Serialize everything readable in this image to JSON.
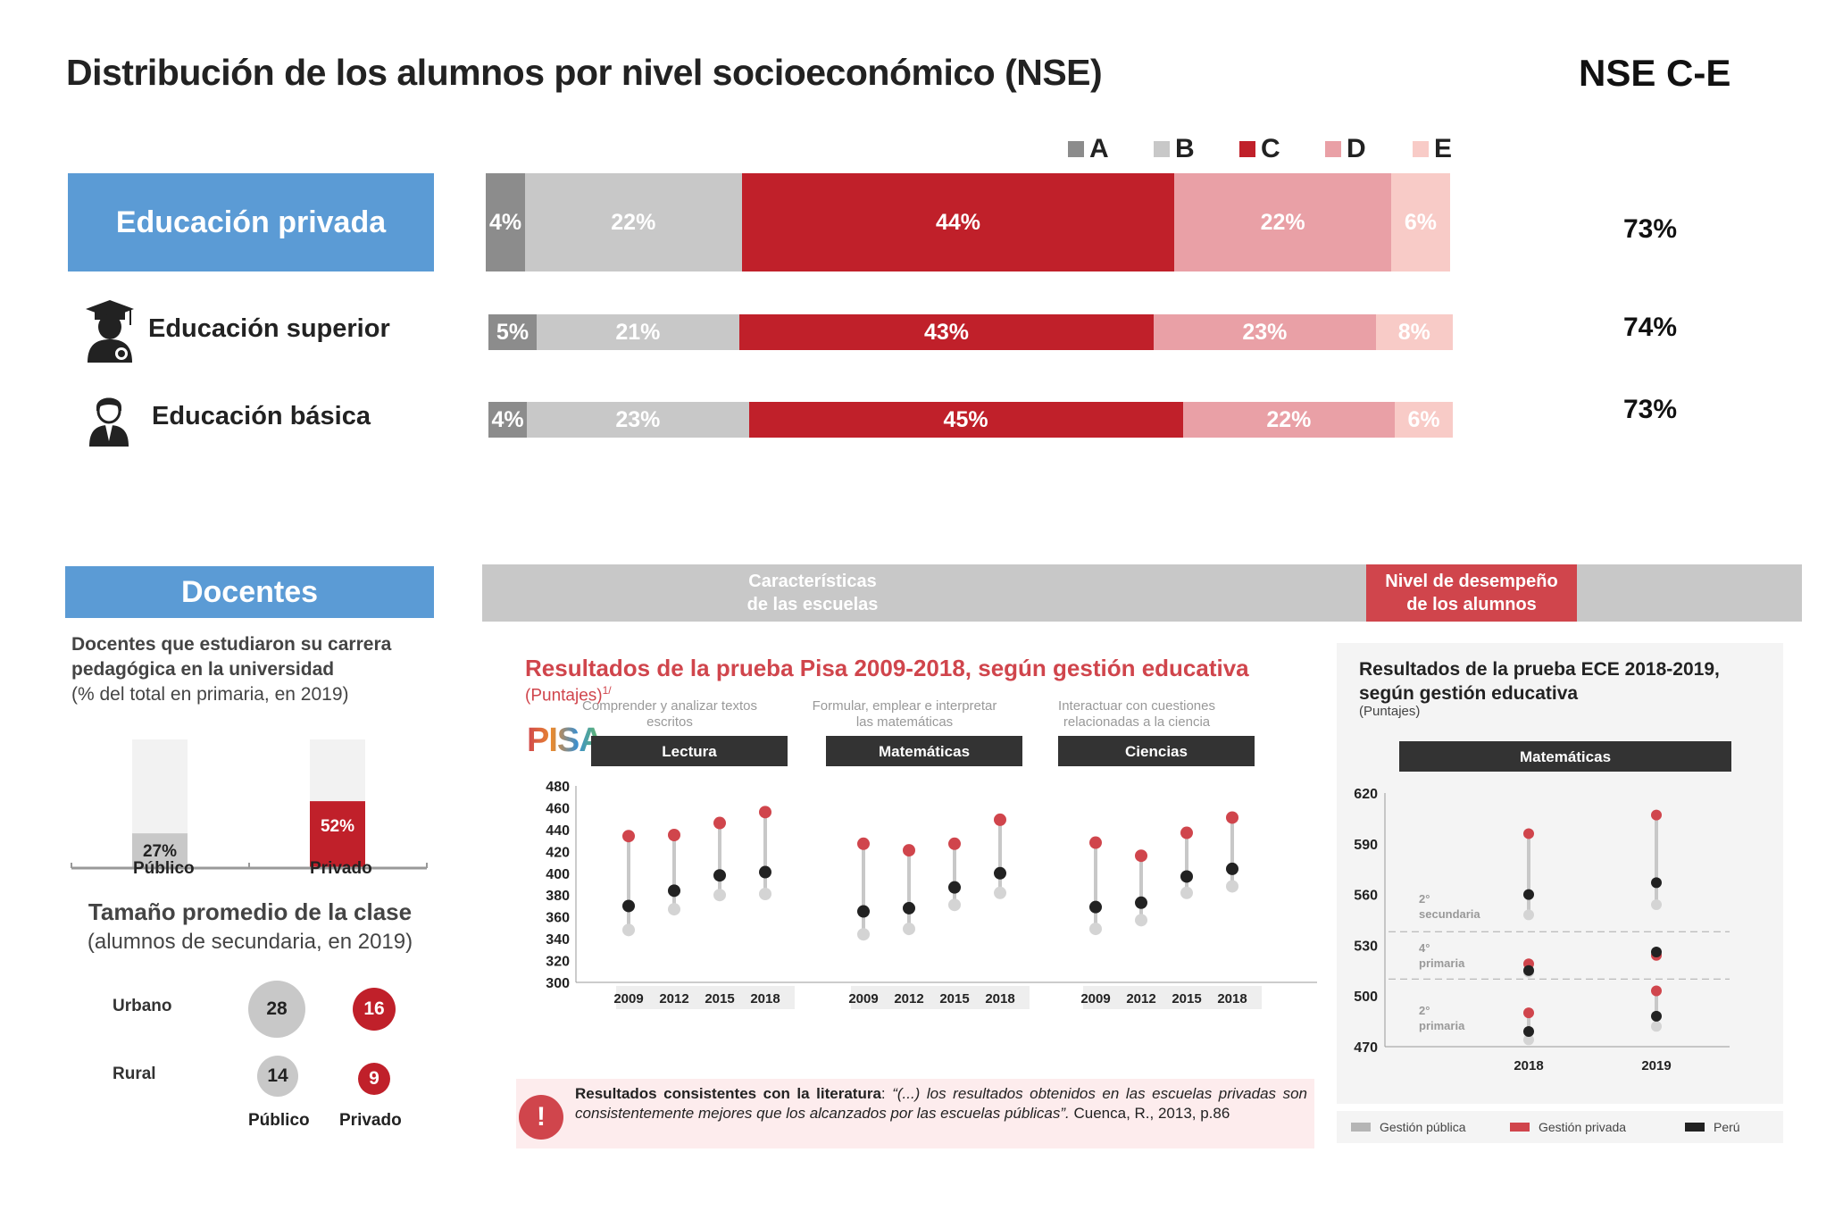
{
  "header": {
    "title": "Distribución de los alumnos por nivel socioeconómico (NSE)",
    "nse_title": "NSE C-E"
  },
  "colors": {
    "A": "#8c8c8c",
    "B": "#c8c8c8",
    "C": "#c0202a",
    "D": "#e9a0a6",
    "E": "#f8cbc7",
    "blue": "#5b9bd5",
    "red": "#d0454c",
    "gray_dot": "#cfcfcf",
    "dark_dot": "#222222"
  },
  "legend": [
    "A",
    "B",
    "C",
    "D",
    "E"
  ],
  "nse_rows": [
    {
      "label": "Educación privada",
      "values": [
        4,
        22,
        44,
        22,
        6
      ],
      "labels": [
        "4%",
        "22%",
        "44%",
        "22%",
        "6%"
      ],
      "nse_ce": "73%"
    },
    {
      "label": "Educación superior",
      "icon": "graduate-icon",
      "values": [
        5,
        21,
        43,
        23,
        8
      ],
      "labels": [
        "5%",
        "21%",
        "43%",
        "23%",
        "8%"
      ],
      "nse_ce": "74%"
    },
    {
      "label": "Educación básica",
      "icon": "student-icon",
      "values": [
        4,
        23,
        45,
        22,
        6
      ],
      "labels": [
        "4%",
        "23%",
        "45%",
        "22%",
        "6%"
      ],
      "nse_ce": "73%"
    }
  ],
  "docentes": {
    "title": "Docentes",
    "subtitle_bold": "Docentes que estudiaron su carrera pedagógica en la universidad",
    "subtitle_normal": "(% del total en primaria, en 2019)",
    "bars": [
      {
        "label": "Público",
        "value": 27,
        "value_label": "27%"
      },
      {
        "label": "Privado",
        "value": 52,
        "value_label": "52%"
      }
    ],
    "class_title": "Tamaño promedio de la clase",
    "class_subtitle": "(alumnos de secundaria, en 2019)",
    "class_rows": [
      {
        "label": "Urbano",
        "publico": "28",
        "privado": "16"
      },
      {
        "label": "Rural",
        "publico": "14",
        "privado": "9"
      }
    ],
    "col_publico": "Público",
    "col_privado": "Privado"
  },
  "tabs": {
    "left": "Características\nde las escuelas",
    "right": "Nivel de desempeño\nde los alumnos"
  },
  "pisa": {
    "title": "Resultados de la prueba Pisa 2009-2018, según gestión educativa",
    "subtitle": "(Puntajes)",
    "subtitle_sup": "1/",
    "logo": "PISA",
    "y_ticks": [
      "480",
      "460",
      "440",
      "420",
      "400",
      "380",
      "360",
      "340",
      "320",
      "300"
    ],
    "years": [
      "2009",
      "2012",
      "2015",
      "2018"
    ],
    "chart_data": {
      "type": "scatter",
      "ylim": [
        300,
        480
      ],
      "groups": [
        {
          "name": "Lectura",
          "desc": "Comprender y analizar textos escritos",
          "privada": [
            434,
            435,
            446,
            456
          ],
          "peru": [
            370,
            384,
            398,
            401
          ],
          "publica": [
            348,
            367,
            380,
            381
          ]
        },
        {
          "name": "Matemáticas",
          "desc": "Formular, emplear e interpretar las matemáticas",
          "privada": [
            427,
            421,
            427,
            449
          ],
          "peru": [
            365,
            368,
            387,
            400
          ],
          "publica": [
            344,
            349,
            371,
            382
          ]
        },
        {
          "name": "Ciencias",
          "desc": "Interactuar con cuestiones relacionadas a la ciencia",
          "privada": [
            428,
            416,
            437,
            451
          ],
          "peru": [
            369,
            373,
            397,
            404
          ],
          "publica": [
            349,
            357,
            382,
            388
          ]
        }
      ]
    },
    "note_bold": "Resultados consistentes con la literatura",
    "note_italic": "“(...) los resultados obtenidos en las escuelas privadas son consistentemente mejores que los alcanzados por las escuelas públicas”.",
    "note_tail": " Cuenca, R., 2013, p.86"
  },
  "ece": {
    "title": "Resultados de la prueba ECE 2018-2019, según gestión educativa",
    "subtitle": "(Puntajes)",
    "panel_label": "Matemáticas",
    "y_ticks": [
      "620",
      "590",
      "560",
      "530",
      "500",
      "470"
    ],
    "years": [
      "2018",
      "2019"
    ],
    "chart_data": {
      "type": "scatter",
      "ylim": [
        470,
        620
      ],
      "series": [
        {
          "name": "2° secundaria",
          "publica": [
            548,
            554
          ],
          "privada": [
            596,
            607
          ],
          "peru": [
            560,
            567
          ]
        },
        {
          "name": "4° primaria",
          "publica": [
            514,
            525
          ],
          "privada": [
            519,
            524
          ],
          "peru": [
            515,
            526
          ]
        },
        {
          "name": "2° primaria",
          "publica": [
            474,
            482
          ],
          "privada": [
            490,
            503
          ],
          "peru": [
            479,
            488
          ]
        }
      ]
    },
    "labels": {
      "sec2_a": "2°",
      "sec2_b": "secundaria",
      "prim4_a": "4°",
      "prim4_b": "primaria",
      "prim2_a": "2°",
      "prim2_b": "primaria"
    },
    "legend": [
      "Gestión pública",
      "Gestión privada",
      "Perú"
    ]
  }
}
